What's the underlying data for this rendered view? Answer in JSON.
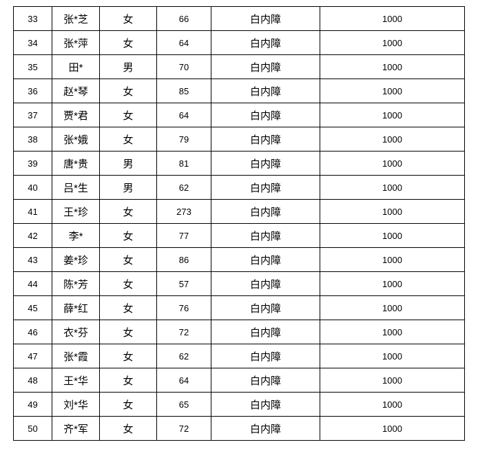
{
  "rows": [
    {
      "no": "33",
      "name": "张*芝",
      "gender": "女",
      "age": "66",
      "diagnosis": "白内障",
      "amount": "1000"
    },
    {
      "no": "34",
      "name": "张*萍",
      "gender": "女",
      "age": "64",
      "diagnosis": "白内障",
      "amount": "1000"
    },
    {
      "no": "35",
      "name": "田*",
      "gender": "男",
      "age": "70",
      "diagnosis": "白内障",
      "amount": "1000"
    },
    {
      "no": "36",
      "name": "赵*琴",
      "gender": "女",
      "age": "85",
      "diagnosis": "白内障",
      "amount": "1000"
    },
    {
      "no": "37",
      "name": "贾*君",
      "gender": "女",
      "age": "64",
      "diagnosis": "白内障",
      "amount": "1000"
    },
    {
      "no": "38",
      "name": "张*娥",
      "gender": "女",
      "age": "79",
      "diagnosis": "白内障",
      "amount": "1000"
    },
    {
      "no": "39",
      "name": "唐*贵",
      "gender": "男",
      "age": "81",
      "diagnosis": "白内障",
      "amount": "1000"
    },
    {
      "no": "40",
      "name": "吕*生",
      "gender": "男",
      "age": "62",
      "diagnosis": "白内障",
      "amount": "1000"
    },
    {
      "no": "41",
      "name": "王*珍",
      "gender": "女",
      "age": "273",
      "diagnosis": "白内障",
      "amount": "1000"
    },
    {
      "no": "42",
      "name": "李*",
      "gender": "女",
      "age": "77",
      "diagnosis": "白内障",
      "amount": "1000"
    },
    {
      "no": "43",
      "name": "姜*珍",
      "gender": "女",
      "age": "86",
      "diagnosis": "白内障",
      "amount": "1000"
    },
    {
      "no": "44",
      "name": "陈*芳",
      "gender": "女",
      "age": "57",
      "diagnosis": "白内障",
      "amount": "1000"
    },
    {
      "no": "45",
      "name": "薛*红",
      "gender": "女",
      "age": "76",
      "diagnosis": "白内障",
      "amount": "1000"
    },
    {
      "no": "46",
      "name": "衣*芬",
      "gender": "女",
      "age": "72",
      "diagnosis": "白内障",
      "amount": "1000"
    },
    {
      "no": "47",
      "name": "张*霞",
      "gender": "女",
      "age": "62",
      "diagnosis": "白内障",
      "amount": "1000"
    },
    {
      "no": "48",
      "name": "王*华",
      "gender": "女",
      "age": "64",
      "diagnosis": "白内障",
      "amount": "1000"
    },
    {
      "no": "49",
      "name": "刘*华",
      "gender": "女",
      "age": "65",
      "diagnosis": "白内障",
      "amount": "1000"
    },
    {
      "no": "50",
      "name": "齐*军",
      "gender": "女",
      "age": "72",
      "diagnosis": "白内障",
      "amount": "1000"
    }
  ]
}
